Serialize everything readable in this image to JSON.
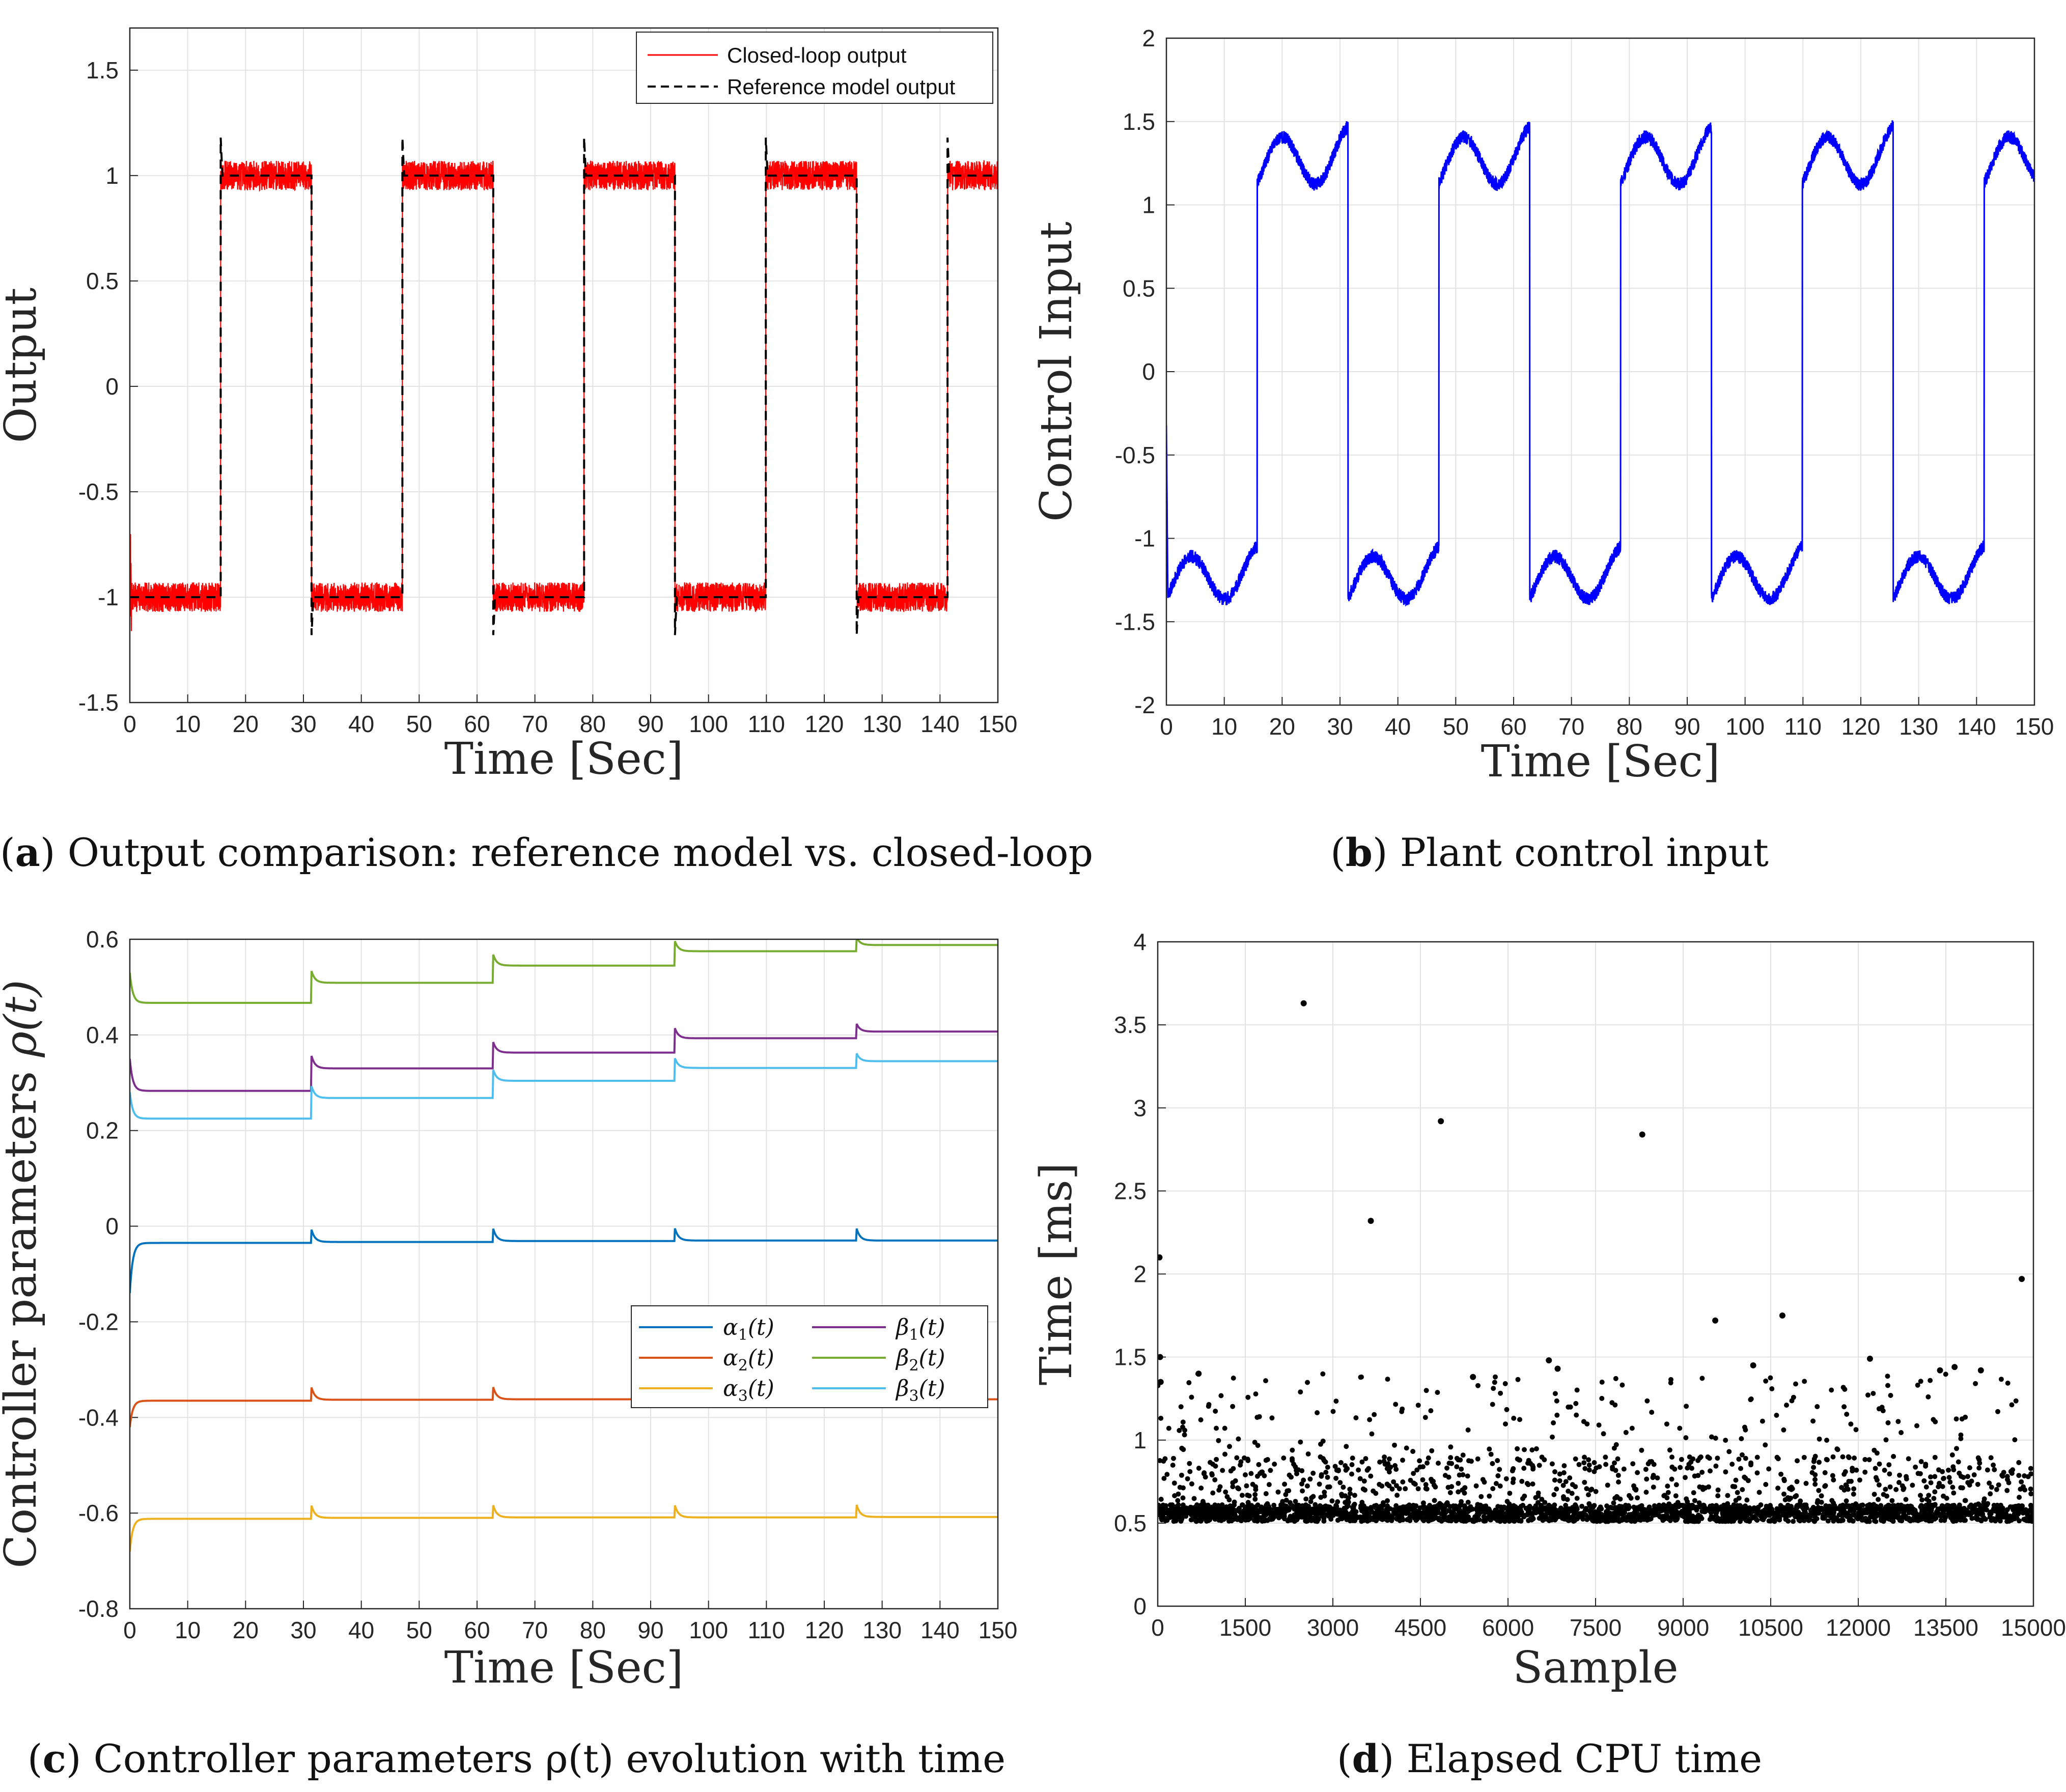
{
  "chart_data": [
    {
      "id": "a",
      "type": "line",
      "xlabel": "Time [Sec]",
      "ylabel": "Output",
      "xlim": [
        0,
        150
      ],
      "ylim": [
        -1.5,
        1.7
      ],
      "xticks": [
        0,
        10,
        20,
        30,
        40,
        50,
        60,
        70,
        80,
        90,
        100,
        110,
        120,
        130,
        140,
        150
      ],
      "yticks": [
        -1.5,
        -1,
        -0.5,
        0,
        0.5,
        1,
        1.5
      ],
      "ytick_labels": [
        "-1.5",
        "-1",
        "-0.5",
        "0",
        "0.5",
        "1",
        "1.5"
      ],
      "grid": true,
      "legend_position": "top-right",
      "switch_times": [
        15.7,
        31.4,
        47.1,
        62.8,
        78.5,
        94.2,
        109.9,
        125.6,
        141.3
      ],
      "initial_level": -1,
      "series": [
        {
          "name": "Closed-loop output",
          "color": "#ff0000",
          "style": "solid",
          "noise_amplitude": 0.07,
          "initial_value": -0.9
        },
        {
          "name": "Reference model output",
          "color": "#000000",
          "style": "dashed",
          "overshoot": 0.18
        }
      ],
      "caption_label": "a",
      "caption_text": "Output comparison: reference model vs. closed-loop"
    },
    {
      "id": "b",
      "type": "line",
      "xlabel": "Time [Sec]",
      "ylabel": "Control Input",
      "xlim": [
        0,
        150
      ],
      "ylim": [
        -2,
        2
      ],
      "xticks": [
        0,
        10,
        20,
        30,
        40,
        50,
        60,
        70,
        80,
        90,
        100,
        110,
        120,
        130,
        140,
        150
      ],
      "yticks": [
        -2,
        -1.5,
        -1,
        -0.5,
        0,
        0.5,
        1,
        1.5,
        2
      ],
      "ytick_labels": [
        "-2",
        "-1.5",
        "-1",
        "-0.5",
        "0",
        "0.5",
        "1",
        "1.5",
        "2"
      ],
      "grid": true,
      "switch_times": [
        15.7,
        31.4,
        47.1,
        62.8,
        78.5,
        94.2,
        109.9,
        125.6,
        141.3
      ],
      "series": [
        {
          "name": "",
          "color": "#0000ff",
          "level_high": 1.25,
          "level_low": -1.25,
          "oscillation_amplitude": 0.2,
          "noise_amplitude": 0.04,
          "initial_value": -0.3
        }
      ],
      "caption_label": "b",
      "caption_text": "Plant control input"
    },
    {
      "id": "c",
      "type": "line",
      "xlabel": "Time [Sec]",
      "ylabel": "Controller parameters",
      "ylabel_math": "ρ(t)",
      "xlim": [
        0,
        150
      ],
      "ylim": [
        -0.8,
        0.6
      ],
      "xticks": [
        0,
        10,
        20,
        30,
        40,
        50,
        60,
        70,
        80,
        90,
        100,
        110,
        120,
        130,
        140,
        150
      ],
      "yticks": [
        -0.8,
        -0.6,
        -0.4,
        -0.2,
        0,
        0.2,
        0.4,
        0.6
      ],
      "ytick_labels": [
        "-0.8",
        "-0.6",
        "-0.4",
        "-0.2",
        "0",
        "0.2",
        "0.4",
        "0.6"
      ],
      "grid": true,
      "legend_position": "center-right",
      "step_times": [
        31.4,
        62.8,
        94.2,
        125.6
      ],
      "series": [
        {
          "name": "α",
          "sub": "1",
          "color": "#0072bd",
          "start": -0.14,
          "levels": [
            -0.035,
            -0.033,
            -0.031,
            -0.03,
            -0.03
          ],
          "spike": 0.025
        },
        {
          "name": "α",
          "sub": "2",
          "color": "#d95319",
          "start": -0.42,
          "levels": [
            -0.365,
            -0.363,
            -0.362,
            -0.362,
            -0.362
          ],
          "spike": 0.025
        },
        {
          "name": "α",
          "sub": "3",
          "color": "#edb120",
          "start": -0.68,
          "levels": [
            -0.612,
            -0.61,
            -0.609,
            -0.609,
            -0.608
          ],
          "spike": 0.025
        },
        {
          "name": "β",
          "sub": "1",
          "color": "#7e2f8e",
          "start": 0.35,
          "levels": [
            0.283,
            0.33,
            0.363,
            0.393,
            0.407
          ],
          "spike": 0.012
        },
        {
          "name": "β",
          "sub": "2",
          "color": "#77ac30",
          "start": 0.53,
          "levels": [
            0.467,
            0.509,
            0.545,
            0.575,
            0.588
          ],
          "spike": 0.012
        },
        {
          "name": "β",
          "sub": "3",
          "color": "#4dbeee",
          "start": 0.28,
          "levels": [
            0.225,
            0.268,
            0.304,
            0.331,
            0.345
          ],
          "spike": 0.012
        }
      ],
      "caption_label": "c",
      "caption_text": "Controller parameters ρ(t) evolution with time"
    },
    {
      "id": "d",
      "type": "scatter",
      "xlabel": "Sample",
      "ylabel": "Time [ms]",
      "xlim": [
        0,
        15000
      ],
      "ylim": [
        0,
        4
      ],
      "xticks": [
        0,
        1500,
        3000,
        4500,
        6000,
        7500,
        9000,
        10500,
        12000,
        13500,
        15000
      ],
      "yticks": [
        0,
        0.5,
        1,
        1.5,
        2,
        2.5,
        3,
        3.5,
        4
      ],
      "ytick_labels": [
        "0",
        "0.5",
        "1",
        "1.5",
        "2",
        "2.5",
        "3",
        "3.5",
        "4"
      ],
      "grid": true,
      "marker_color": "#000000",
      "baseline": 0.55,
      "outliers": [
        [
          30,
          2.1
        ],
        [
          40,
          1.5
        ],
        [
          50,
          1.35
        ],
        [
          700,
          1.4
        ],
        [
          2500,
          3.63
        ],
        [
          3650,
          2.32
        ],
        [
          4850,
          2.92
        ],
        [
          5400,
          1.38
        ],
        [
          6700,
          1.48
        ],
        [
          6850,
          1.43
        ],
        [
          8300,
          2.84
        ],
        [
          9550,
          1.72
        ],
        [
          10200,
          1.45
        ],
        [
          10700,
          1.75
        ],
        [
          12200,
          1.49
        ],
        [
          13400,
          1.42
        ],
        [
          13650,
          1.44
        ],
        [
          14100,
          1.42
        ],
        [
          14800,
          1.97
        ]
      ],
      "caption_label": "d",
      "caption_text": "Elapsed CPU time"
    }
  ]
}
